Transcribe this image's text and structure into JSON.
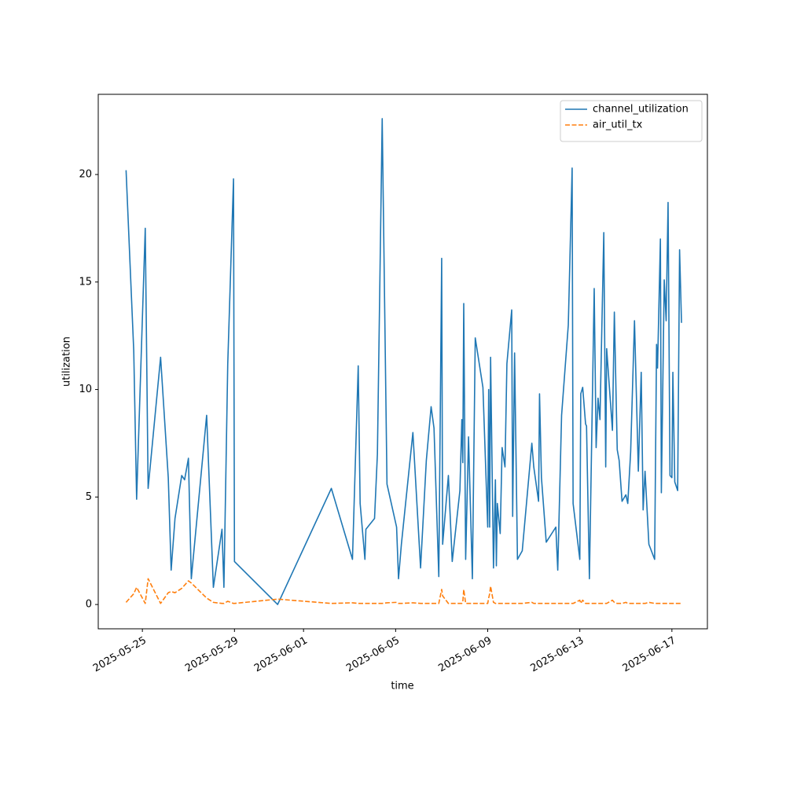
{
  "chart_data": {
    "type": "line",
    "xlabel": "time",
    "ylabel": "utilization",
    "x": [
      "2025-05-24T07:00",
      "2025-05-24T15:00",
      "2025-05-24T18:00",
      "2025-05-25T03:00",
      "2025-05-25T06:00",
      "2025-05-25T19:00",
      "2025-05-26T03:00",
      "2025-05-26T06:00",
      "2025-05-26T10:00",
      "2025-05-26T17:00",
      "2025-05-26T20:00",
      "2025-05-27T00:00",
      "2025-05-27T03:00",
      "2025-05-27T19:00",
      "2025-05-28T02:00",
      "2025-05-28T11:00",
      "2025-05-28T13:00",
      "2025-05-28T17:00",
      "2025-05-28T23:00",
      "2025-05-29T00:00",
      "2025-05-30T21:00",
      "2025-06-02T05:00",
      "2025-06-03T03:00",
      "2025-06-03T09:00",
      "2025-06-03T11:00",
      "2025-06-03T16:00",
      "2025-06-03T17:00",
      "2025-06-04T02:00",
      "2025-06-04T05:00",
      "2025-06-04T10:00",
      "2025-06-04T15:00",
      "2025-06-05T01:00",
      "2025-06-05T03:00",
      "2025-06-05T06:00",
      "2025-06-05T18:00",
      "2025-06-06T02:00",
      "2025-06-06T08:00",
      "2025-06-06T13:00",
      "2025-06-06T16:00",
      "2025-06-06T21:00",
      "2025-06-07T00:00",
      "2025-06-07T01:00",
      "2025-06-07T07:00",
      "2025-06-07T11:00",
      "2025-06-07T19:00",
      "2025-06-07T21:00",
      "2025-06-07T22:00",
      "2025-06-07T23:00",
      "2025-06-08T01:00",
      "2025-06-08T04:00",
      "2025-06-08T08:00",
      "2025-06-08T11:00",
      "2025-06-08T19:00",
      "2025-06-09T00:00",
      "2025-06-09T01:00",
      "2025-06-09T02:00",
      "2025-06-09T03:00",
      "2025-06-09T06:00",
      "2025-06-09T08:00",
      "2025-06-09T09:00",
      "2025-06-09T10:00",
      "2025-06-09T13:00",
      "2025-06-09T15:00",
      "2025-06-09T18:00",
      "2025-06-09T20:00",
      "2025-06-10T01:00",
      "2025-06-10T02:00",
      "2025-06-10T04:00",
      "2025-06-10T07:00",
      "2025-06-10T12:00",
      "2025-06-10T22:00",
      "2025-06-11T00:00",
      "2025-06-11T05:00",
      "2025-06-11T06:00",
      "2025-06-11T08:00",
      "2025-06-11T13:00",
      "2025-06-11T23:00",
      "2025-06-12T01:00",
      "2025-06-12T05:00",
      "2025-06-12T12:00",
      "2025-06-12T16:00",
      "2025-06-12T17:00",
      "2025-06-13T00:00",
      "2025-06-13T01:00",
      "2025-06-13T03:00",
      "2025-06-13T06:00",
      "2025-06-13T07:00",
      "2025-06-13T10:00",
      "2025-06-13T15:00",
      "2025-06-13T17:00",
      "2025-06-13T19:00",
      "2025-06-13T21:00",
      "2025-06-14T01:00",
      "2025-06-14T03:00",
      "2025-06-14T04:00",
      "2025-06-14T10:00",
      "2025-06-14T12:00",
      "2025-06-14T15:00",
      "2025-06-14T17:00",
      "2025-06-14T20:00",
      "2025-06-15T00:00",
      "2025-06-15T02:00",
      "2025-06-15T05:00",
      "2025-06-15T09:00",
      "2025-06-15T13:00",
      "2025-06-15T16:00",
      "2025-06-15T18:00",
      "2025-06-15T20:00",
      "2025-06-16T00:00",
      "2025-06-16T06:00",
      "2025-06-16T08:00",
      "2025-06-16T09:00",
      "2025-06-16T12:00",
      "2025-06-16T13:00",
      "2025-06-16T16:00",
      "2025-06-16T18:00",
      "2025-06-16T20:00",
      "2025-06-16T22:00",
      "2025-06-17T00:00",
      "2025-06-17T01:00",
      "2025-06-17T03:00",
      "2025-06-17T06:00",
      "2025-06-17T08:00",
      "2025-06-17T10:00"
    ],
    "series": [
      {
        "name": "channel_utilization",
        "color": "#1f77b4",
        "linestyle": "solid",
        "values": [
          20.2,
          11.8,
          4.9,
          17.5,
          5.4,
          11.5,
          5.9,
          1.6,
          4.0,
          6.0,
          5.8,
          6.8,
          1.2,
          8.8,
          0.8,
          3.5,
          0.8,
          11.2,
          19.8,
          2.0,
          0.0,
          5.4,
          2.1,
          11.1,
          4.7,
          2.1,
          3.5,
          4.0,
          7.0,
          22.6,
          5.6,
          3.6,
          1.2,
          2.8,
          8.0,
          1.7,
          6.7,
          9.2,
          8.2,
          1.3,
          16.1,
          2.8,
          6.0,
          2.0,
          5.3,
          8.6,
          6.6,
          14.0,
          2.1,
          7.8,
          1.2,
          12.4,
          10.1,
          3.6,
          10.0,
          3.6,
          11.5,
          1.7,
          5.8,
          1.8,
          4.7,
          3.3,
          7.3,
          6.4,
          11.2,
          13.7,
          4.1,
          11.7,
          2.1,
          2.5,
          7.5,
          6.4,
          4.8,
          9.8,
          5.9,
          2.9,
          3.6,
          1.6,
          8.8,
          13.0,
          20.3,
          4.7,
          2.1,
          9.8,
          10.1,
          8.4,
          8.3,
          1.2,
          14.7,
          7.3,
          9.6,
          8.6,
          17.3,
          6.4,
          11.9,
          8.1,
          13.6,
          7.2,
          6.7,
          4.8,
          5.1,
          4.7,
          7.1,
          13.2,
          6.2,
          10.8,
          4.4,
          6.2,
          2.8,
          2.1,
          12.1,
          11.0,
          17.0,
          5.2,
          15.1,
          13.2,
          18.7,
          6.0,
          5.9,
          10.8,
          5.7,
          5.3,
          16.5,
          13.1
        ]
      },
      {
        "name": "air_util_tx",
        "color": "#ff7f0e",
        "linestyle": "dashed",
        "values": [
          0.1,
          0.5,
          0.8,
          0.05,
          1.2,
          0.05,
          0.55,
          0.6,
          0.55,
          0.75,
          0.9,
          1.1,
          1.0,
          0.3,
          0.1,
          0.05,
          0.05,
          0.15,
          0.05,
          0.05,
          0.25,
          0.05,
          0.08,
          0.05,
          0.05,
          0.05,
          0.05,
          0.05,
          0.05,
          0.05,
          0.08,
          0.1,
          0.05,
          0.05,
          0.08,
          0.05,
          0.05,
          0.05,
          0.05,
          0.05,
          0.7,
          0.4,
          0.05,
          0.05,
          0.05,
          0.05,
          0.1,
          0.7,
          0.05,
          0.05,
          0.05,
          0.05,
          0.05,
          0.05,
          0.3,
          0.5,
          0.85,
          0.1,
          0.05,
          0.05,
          0.05,
          0.05,
          0.05,
          0.05,
          0.05,
          0.05,
          0.05,
          0.05,
          0.05,
          0.05,
          0.1,
          0.05,
          0.05,
          0.05,
          0.05,
          0.05,
          0.05,
          0.05,
          0.05,
          0.05,
          0.05,
          0.05,
          0.2,
          0.05,
          0.2,
          0.05,
          0.05,
          0.05,
          0.05,
          0.05,
          0.05,
          0.05,
          0.05,
          0.05,
          0.05,
          0.2,
          0.1,
          0.05,
          0.05,
          0.05,
          0.1,
          0.05,
          0.05,
          0.05,
          0.05,
          0.05,
          0.05,
          0.05,
          0.1,
          0.05,
          0.05,
          0.05,
          0.05,
          0.05,
          0.05,
          0.05,
          0.05,
          0.05,
          0.05,
          0.05,
          0.05,
          0.05,
          0.05,
          0.05
        ]
      }
    ],
    "xlim": [
      "2025-05-23T02:00",
      "2025-06-18T13:00"
    ],
    "xticks": [
      "2025-05-25",
      "2025-05-29",
      "2025-06-01",
      "2025-06-05",
      "2025-06-09",
      "2025-06-13",
      "2025-06-17"
    ],
    "ylim": [
      -1.13,
      23.73
    ],
    "yticks": [
      0,
      5,
      10,
      15,
      20
    ],
    "grid": false,
    "legend": "upper right"
  }
}
